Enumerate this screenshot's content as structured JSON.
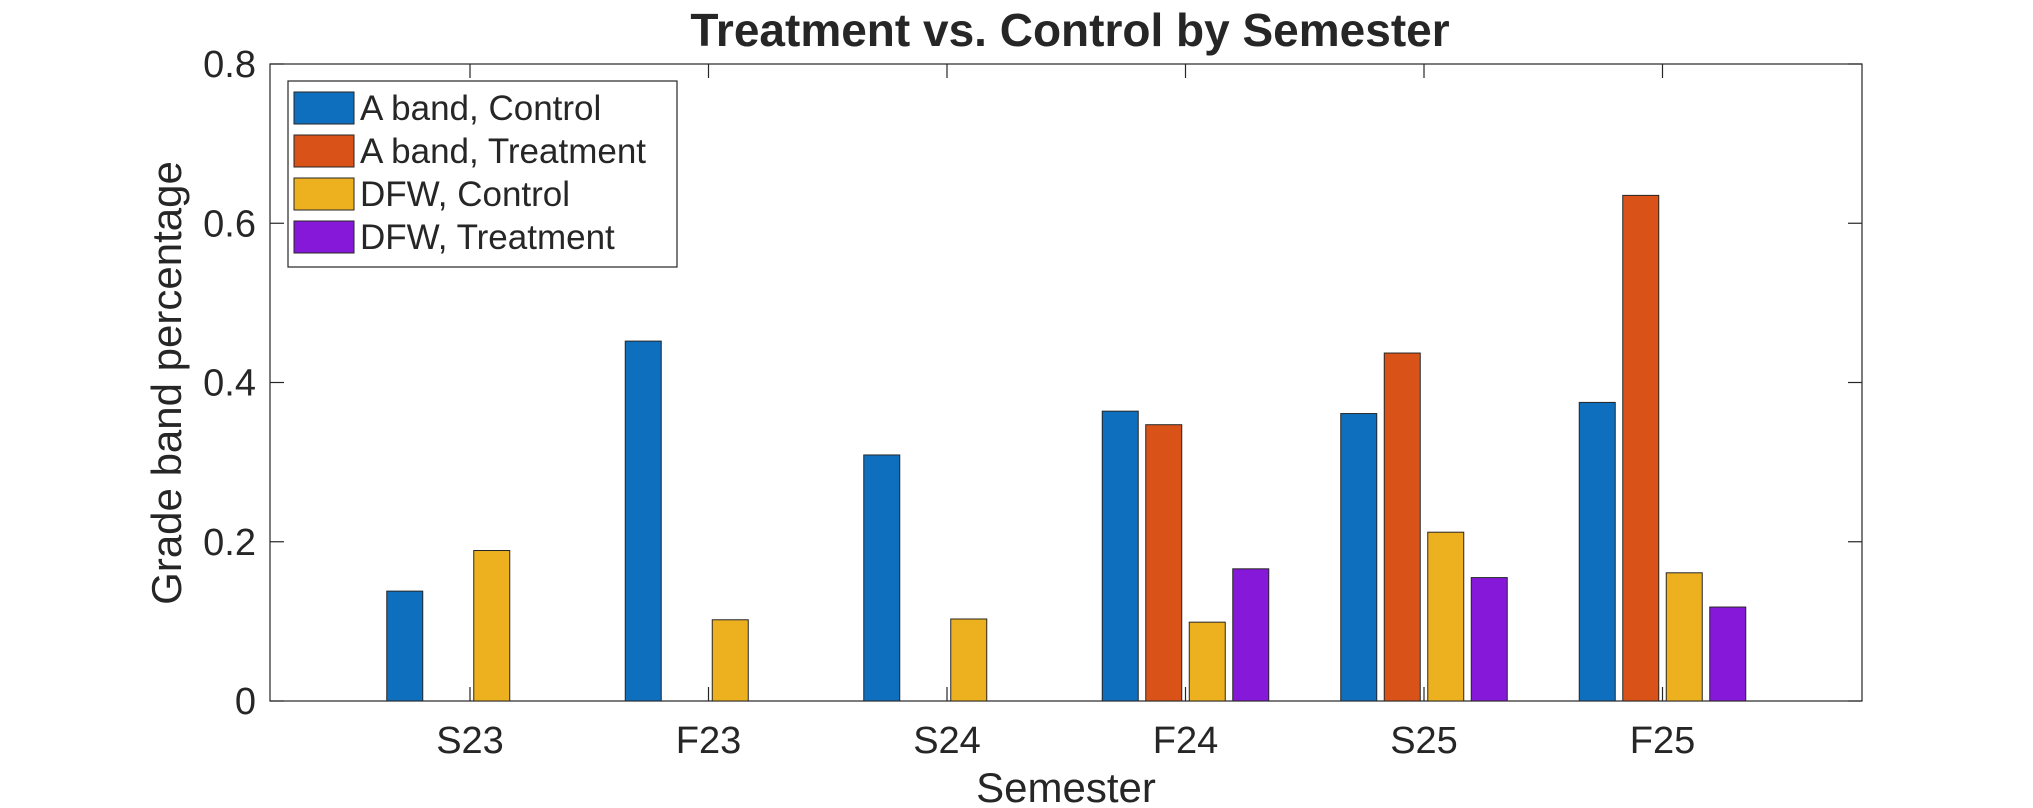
{
  "chart_data": {
    "type": "bar",
    "title": "Treatment vs. Control by Semester",
    "xlabel": "Semester",
    "ylabel": "Grade band percentage",
    "ylim": [
      0,
      0.8
    ],
    "yticks": [
      "0",
      "0.2",
      "0.4",
      "0.6",
      "0.8"
    ],
    "grid": false,
    "legend_position": "top-left",
    "categories": [
      "S23",
      "F23",
      "S24",
      "F24",
      "S25",
      "F25"
    ],
    "series": [
      {
        "name": "A band, Control",
        "color": "#0f6fbf",
        "values": [
          0.138,
          0.452,
          0.309,
          0.364,
          0.361,
          0.375
        ]
      },
      {
        "name": "A band, Treatment",
        "color": "#d95319",
        "values": [
          null,
          null,
          null,
          0.347,
          0.437,
          0.635
        ]
      },
      {
        "name": "DFW, Control",
        "color": "#edb120",
        "values": [
          0.189,
          0.102,
          0.103,
          0.099,
          0.212,
          0.161
        ]
      },
      {
        "name": "DFW, Treatment",
        "color": "#8618d9",
        "values": [
          null,
          null,
          null,
          0.166,
          0.155,
          0.118
        ]
      }
    ]
  }
}
